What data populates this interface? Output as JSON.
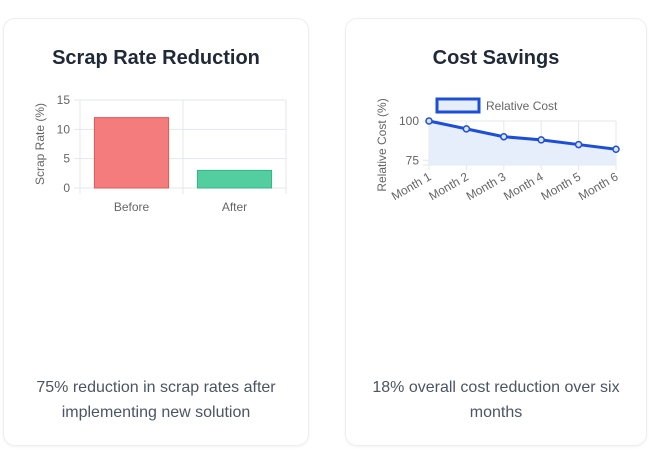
{
  "cards": [
    {
      "title": "Scrap Rate Reduction",
      "description": "75% reduction in scrap rates after implementing new solution"
    },
    {
      "title": "Cost Savings",
      "description": "18% overall cost reduction over six months"
    }
  ],
  "chart_data": [
    {
      "type": "bar",
      "categories": [
        "Before",
        "After"
      ],
      "values": [
        12,
        3
      ],
      "colors": [
        "#f47c7c",
        "#52cea0"
      ],
      "border_colors": [
        "#e15a5a",
        "#35b585"
      ],
      "ylabel": "Scrap Rate (%)",
      "ylim": [
        0,
        15
      ],
      "yticks": [
        0,
        5,
        10,
        15
      ],
      "grid": true,
      "legend": "none"
    },
    {
      "type": "area",
      "categories": [
        "Month 1",
        "Month 2",
        "Month 3",
        "Month 4",
        "Month 5",
        "Month 6"
      ],
      "series": [
        {
          "name": "Relative Cost",
          "values": [
            100,
            95,
            90,
            88,
            85,
            82
          ],
          "color": "#1d4ed8",
          "fill": "#e6edfb"
        }
      ],
      "ylabel": "Relative Cost (%)",
      "ylim": [
        72,
        100
      ],
      "yticks": [
        75,
        100
      ],
      "grid": true,
      "legend": "top"
    }
  ]
}
